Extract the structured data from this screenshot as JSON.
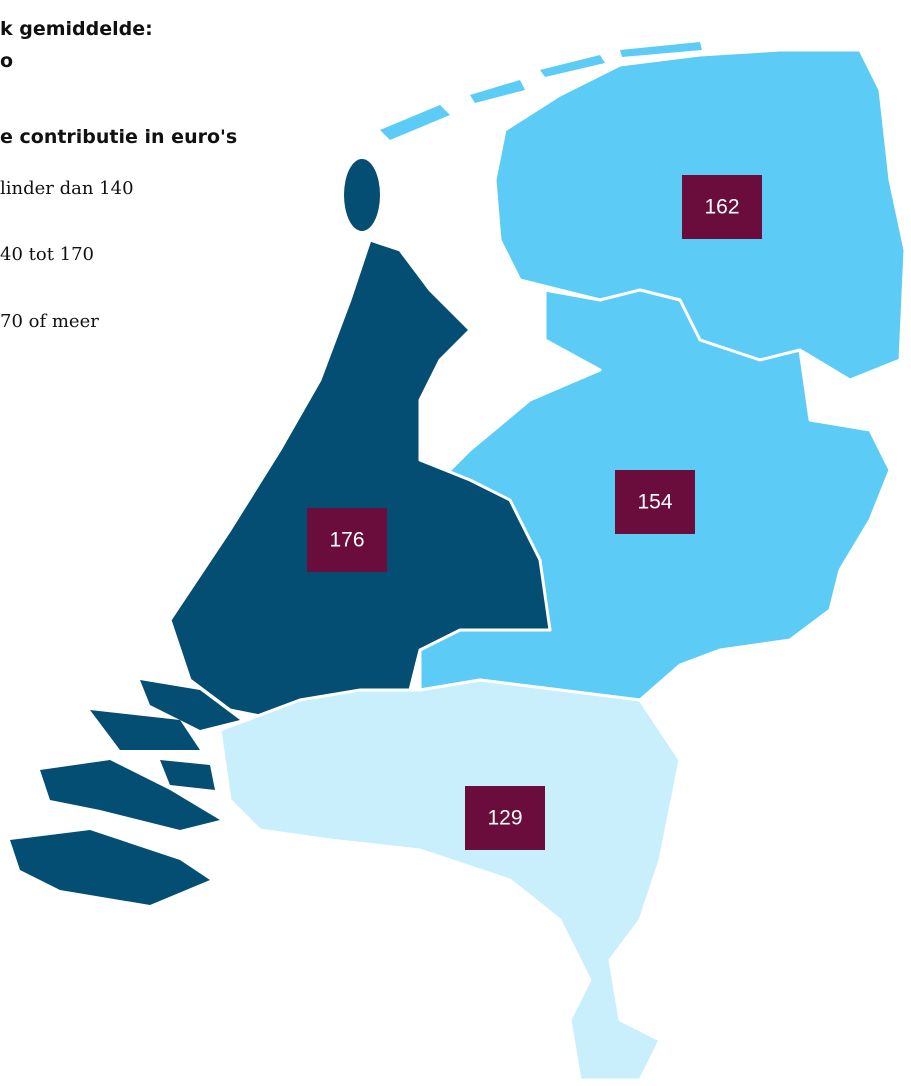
{
  "legend": {
    "title": [
      "k gemiddelde:",
      "o"
    ],
    "heading": "e contributie in euro's",
    "items": [
      {
        "label": "linder dan 140",
        "color": "#c9eefc"
      },
      {
        "label": "40 tot 170",
        "color": "#5ccbf5"
      },
      {
        "label": "70 of meer",
        "color": "#034e72"
      }
    ]
  },
  "regions": [
    {
      "value": 162,
      "color": "#5ccbf5"
    },
    {
      "value": 154,
      "color": "#5ccbf5"
    },
    {
      "value": 176,
      "color": "#034e72"
    },
    {
      "value": 129,
      "color": "#c9eefc"
    }
  ],
  "label_color": "#6b0d3c"
}
